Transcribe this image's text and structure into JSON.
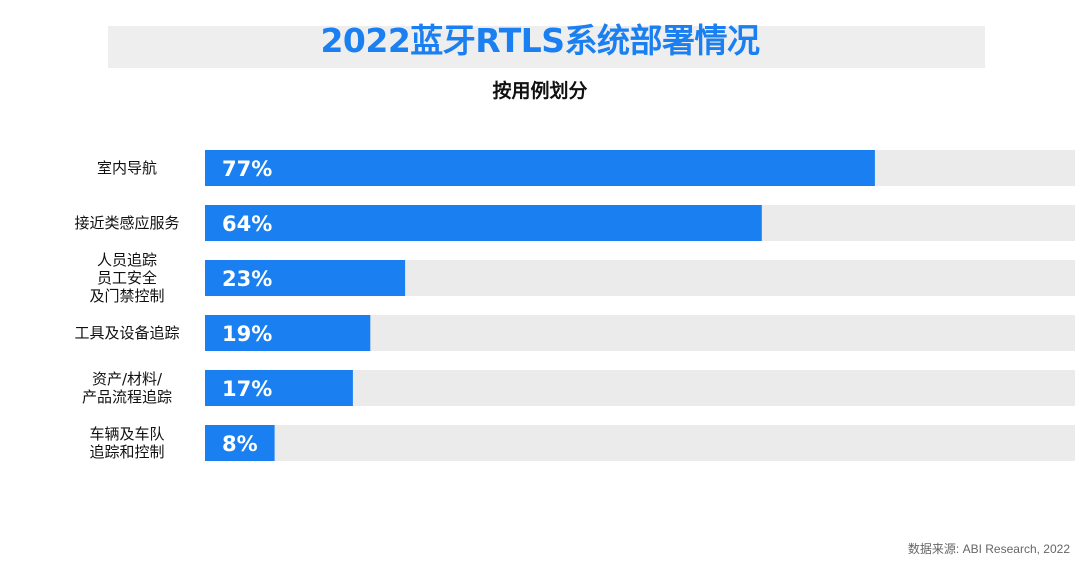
{
  "title": "2022蓝牙RTLS系统部署情况",
  "subtitle": "按用例划分",
  "source": "数据来源: ABI Research, 2022",
  "colors": {
    "bar": "#1a7ff0",
    "track": "#ebebeb",
    "title": "#1a7ff0"
  },
  "chart_data": {
    "type": "bar",
    "orientation": "horizontal",
    "categories": [
      [
        "室内导航"
      ],
      [
        "接近类感应服务"
      ],
      [
        "人员追踪",
        "员工安全",
        "及门禁控制"
      ],
      [
        "工具及设备追踪"
      ],
      [
        "资产/材料/",
        "产品流程追踪"
      ],
      [
        "车辆及车队",
        "追踪和控制"
      ]
    ],
    "values": [
      77,
      64,
      23,
      19,
      17,
      8
    ],
    "data_labels": [
      "77%",
      "64%",
      "23%",
      "19%",
      "17%",
      "8%"
    ],
    "xlim": [
      0,
      100
    ],
    "grid": false,
    "legend": "none"
  }
}
